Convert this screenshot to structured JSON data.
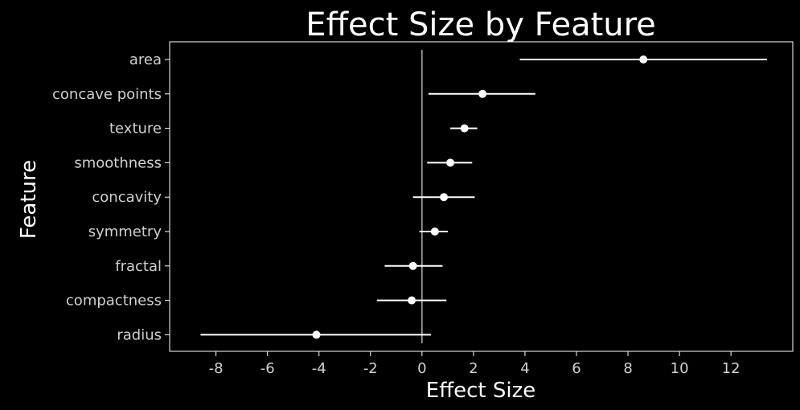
{
  "chart_data": {
    "type": "forest",
    "title": "Effect Size by Feature",
    "xlabel": "Effect Size",
    "ylabel": "Feature",
    "xlim": [
      -9.8,
      14.4
    ],
    "xticks": [
      -8,
      -6,
      -4,
      -2,
      0,
      2,
      4,
      6,
      8,
      10,
      12
    ],
    "xtick_labels": [
      "-8",
      "-6",
      "-4",
      "-2",
      "0",
      "2",
      "4",
      "6",
      "8",
      "10",
      "12"
    ],
    "reference_line": 0,
    "grid": false,
    "colors": {
      "background": "#000000",
      "marker": "#ffffff",
      "error_bar": "#ffffff",
      "reference_line": "#b0b0b0",
      "frame": "#ffffff",
      "tick_text": "#d0d0d0"
    },
    "categories": [
      "area",
      "concave points",
      "texture",
      "smoothness",
      "concavity",
      "symmetry",
      "fractal",
      "compactness",
      "radius"
    ],
    "series": [
      {
        "estimate": [
          8.6,
          2.35,
          1.65,
          1.1,
          0.85,
          0.5,
          -0.35,
          -0.4,
          -4.1
        ],
        "ci_low": [
          3.8,
          0.25,
          1.1,
          0.2,
          -0.35,
          -0.1,
          -1.45,
          -1.75,
          -8.6
        ],
        "ci_high": [
          13.4,
          4.4,
          2.15,
          1.95,
          2.05,
          1.0,
          0.8,
          0.95,
          0.35
        ]
      }
    ]
  }
}
